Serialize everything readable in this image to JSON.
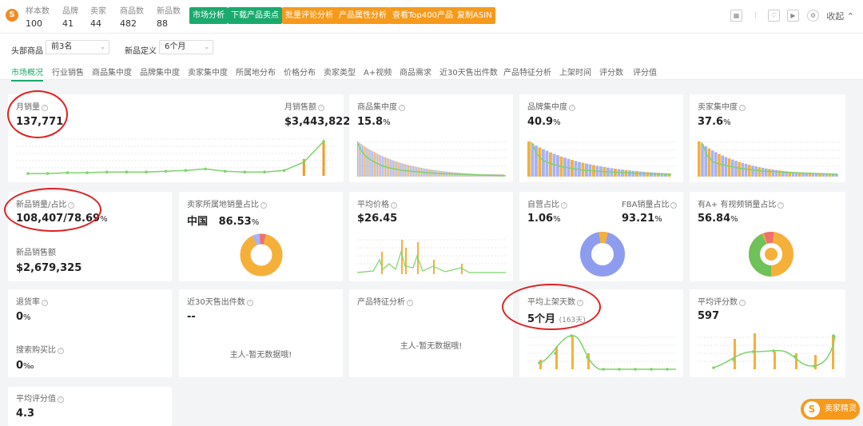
{
  "header": {
    "logo": "S",
    "stats": [
      {
        "label": "样本数",
        "value": "100"
      },
      {
        "label": "品牌",
        "value": "41"
      },
      {
        "label": "卖家",
        "value": "44"
      },
      {
        "label": "商品数",
        "value": "482"
      },
      {
        "label": "新品数",
        "value": "88"
      }
    ],
    "buttons": [
      {
        "label": "市场分析",
        "color": "green"
      },
      {
        "label": "下载产品卖点",
        "color": "green"
      },
      {
        "label": "批量评论分析",
        "color": "orange"
      },
      {
        "label": "产品属性分析",
        "color": "orange"
      },
      {
        "label": "查看Top400产品",
        "color": "orange"
      },
      {
        "label": "复制ASIN",
        "color": "orange"
      }
    ],
    "icons": [
      "grid-icon",
      "more-icon",
      "heart-icon",
      "video-icon",
      "settings-icon"
    ],
    "collapse_label": "收起"
  },
  "filters": {
    "head_label": "头部商品",
    "head_value": "前3名",
    "new_label": "新品定义",
    "new_value": "6个月"
  },
  "tabs": [
    "市场概况",
    "行业销售",
    "商品集中度",
    "品牌集中度",
    "卖家集中度",
    "所属地分布",
    "价格分布",
    "卖家类型",
    "A+视频",
    "商品需求",
    "近30天售出件数",
    "产品特征分析",
    "上架时间",
    "评分数",
    "评分值"
  ],
  "cards": {
    "monthly_sales": {
      "title": "月销量",
      "value": "137,771"
    },
    "monthly_revenue": {
      "title": "月销售额",
      "value": "$3,443,822"
    },
    "product_conc": {
      "title": "商品集中度",
      "value": "15.8",
      "unit": "%"
    },
    "brand_conc": {
      "title": "品牌集中度",
      "value": "40.9",
      "unit": "%"
    },
    "seller_conc": {
      "title": "卖家集中度",
      "value": "37.6",
      "unit": "%"
    },
    "new_sales": {
      "title": "新品销量/占比",
      "value": "108,407/78.69",
      "unit": "%"
    },
    "new_revenue": {
      "title": "新品销售额",
      "value": "$2,679,325"
    },
    "seller_region": {
      "title": "卖家所属地销量占比",
      "region": "中国",
      "value": "86.53",
      "unit": "%"
    },
    "avg_price": {
      "title": "平均价格",
      "value": "$26.45"
    },
    "self_run": {
      "title": "自营占比",
      "value": "1.06",
      "unit": "%"
    },
    "fba": {
      "title": "FBA销量占比",
      "value": "93.21",
      "unit": "%"
    },
    "aplus": {
      "title": "有A+ 有视频销量占比",
      "value": "56.84",
      "unit": "%"
    },
    "return_rate": {
      "title": "退货率",
      "value": "0",
      "unit": "%"
    },
    "search_ratio": {
      "title": "搜索购买比",
      "value": "0",
      "unit": "‰"
    },
    "sold30": {
      "title": "近30天售出件数",
      "value": "--",
      "empty": "主人-暂无数据哦!"
    },
    "features": {
      "title": "产品特征分析",
      "empty": "主人-暂无数据哦!"
    },
    "avg_listing": {
      "title": "平均上架天数",
      "value": "5个月",
      "sub": "(163天)"
    },
    "avg_reviews": {
      "title": "平均评分数",
      "value": "597"
    },
    "avg_rating": {
      "title": "平均评分值",
      "value": "4.3"
    }
  },
  "badge": {
    "label": "卖家精灵",
    "logo": "S"
  },
  "colors": {
    "green": "#1aaa6e",
    "orange": "#f59a1c",
    "line": "#7ed36a",
    "bar_blue": "#a7b3f5",
    "red": "#e02020"
  },
  "chart_data": [
    {
      "type": "line",
      "title": "月销量",
      "values": [
        3,
        3,
        4,
        4,
        5,
        5,
        5,
        6,
        7,
        9,
        6,
        5,
        5,
        7,
        18,
        45
      ],
      "bars": [
        0,
        0,
        0,
        0,
        0,
        0,
        0,
        0,
        0,
        0,
        0,
        0,
        0,
        0,
        22,
        45
      ]
    },
    {
      "type": "pie",
      "title": "卖家所属地销量占比",
      "slices": [
        {
          "name": "中国",
          "value": 86.53
        },
        {
          "name": "其他",
          "value": 13.47
        }
      ]
    },
    {
      "type": "pie",
      "title": "自营占比",
      "slices": [
        {
          "name": "FBA",
          "value": 93.21
        },
        {
          "name": "其他",
          "value": 6.79
        }
      ]
    },
    {
      "type": "pie",
      "title": "有A+ 有视频销量占比",
      "slices": [
        {
          "name": "有A+",
          "value": 56.84
        },
        {
          "name": "其他",
          "value": 43.16
        }
      ]
    }
  ]
}
